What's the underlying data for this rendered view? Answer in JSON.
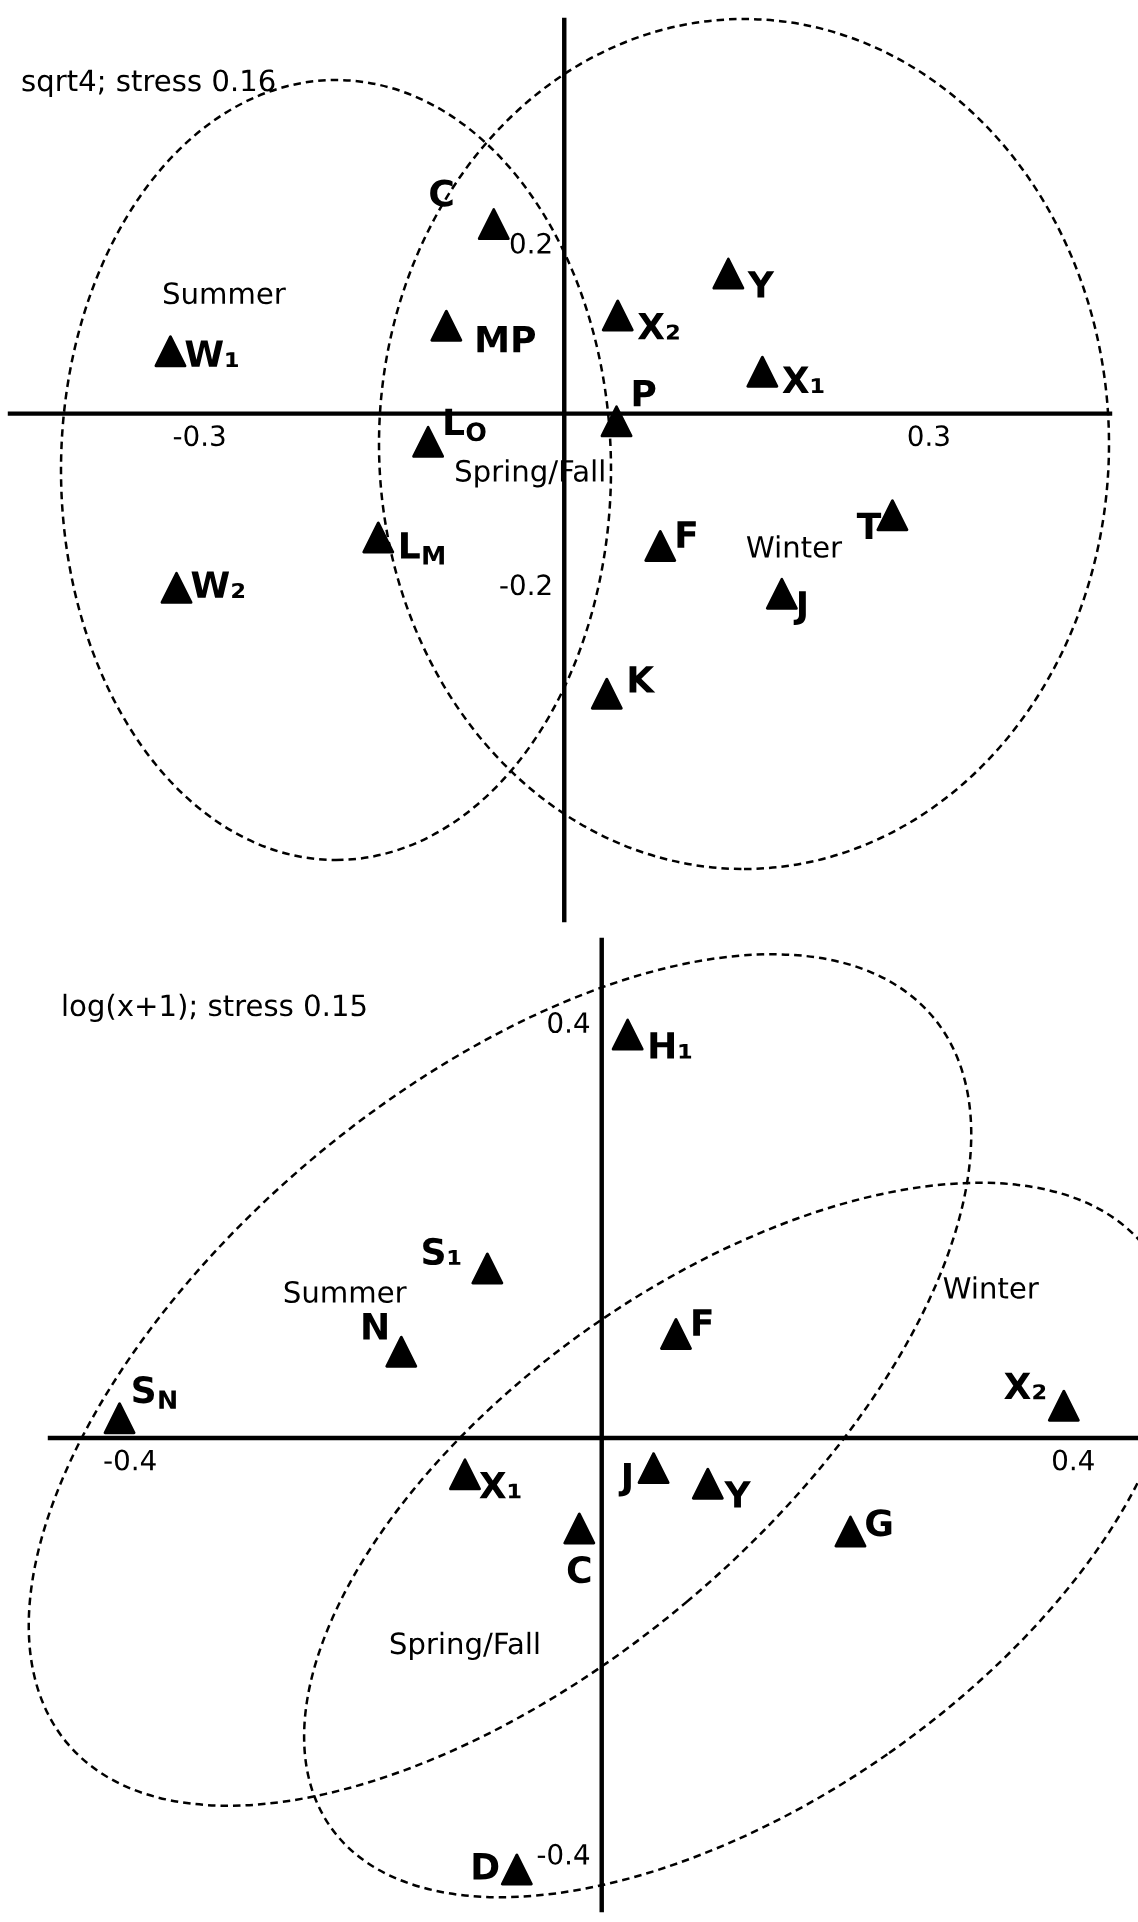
{
  "chart_data": [
    {
      "type": "scatter",
      "title": "sqrt4; stress 0.16",
      "marker": "triangle",
      "grid": false,
      "xlim": [
        -0.456,
        0.449
      ],
      "ylim": [
        -0.593,
        0.461
      ],
      "xticks": [
        -0.3,
        0.3
      ],
      "yticks": [
        -0.2,
        0.2
      ],
      "series": [
        {
          "color": "#000000",
          "x": [
            -0.058,
            -0.097,
            -0.324,
            0.044,
            0.135,
            0.163,
            0.043,
            -0.112,
            -0.153,
            -0.319,
            0.079,
            0.27,
            0.179,
            0.035
          ],
          "values": [
            0.222,
            0.103,
            0.073,
            0.115,
            0.164,
            0.049,
            -0.009,
            -0.033,
            -0.145,
            -0.204,
            -0.155,
            -0.119,
            -0.211,
            -0.328
          ]
        }
      ],
      "annotations": [
        {
          "text": "C",
          "x": -0.058,
          "y": 0.222
        },
        {
          "text": "MP",
          "x": -0.097,
          "y": 0.103
        },
        {
          "text": "W₁",
          "x": -0.324,
          "y": 0.073
        },
        {
          "text": "X₂",
          "x": 0.044,
          "y": 0.115
        },
        {
          "text": "Y",
          "x": 0.135,
          "y": 0.164
        },
        {
          "text": "X₁",
          "x": 0.163,
          "y": 0.049
        },
        {
          "text": "P",
          "x": 0.043,
          "y": -0.009
        },
        {
          "text": "L$_{O}$",
          "x": -0.112,
          "y": -0.033
        },
        {
          "text": "L$_{M}$",
          "x": -0.153,
          "y": -0.145
        },
        {
          "text": "W₂",
          "x": -0.319,
          "y": -0.204
        },
        {
          "text": "F",
          "x": 0.079,
          "y": -0.155
        },
        {
          "text": "T",
          "x": 0.27,
          "y": -0.119
        },
        {
          "text": "J",
          "x": 0.179,
          "y": -0.211
        },
        {
          "text": "K",
          "x": 0.035,
          "y": -0.328
        },
        "Summer",
        "Spring/Fall",
        "Winter"
      ]
    },
    {
      "type": "scatter",
      "title": "log(x+1); stress 0.15",
      "marker": "triangle",
      "grid": false,
      "xlim": [
        -0.468,
        0.46
      ],
      "ylim": [
        -0.454,
        0.479
      ],
      "xticks": [
        -0.4,
        0.4
      ],
      "yticks": [
        -0.4,
        0.4
      ],
      "series": [
        {
          "color": "#000000",
          "x": [
            0.022,
            -0.097,
            -0.17,
            0.063,
            -0.409,
            0.392,
            -0.116,
            0.044,
            0.09,
            -0.019,
            0.211,
            -0.072
          ],
          "values": [
            0.388,
            0.163,
            0.083,
            0.1,
            0.019,
            0.031,
            -0.035,
            -0.029,
            -0.044,
            -0.087,
            -0.09,
            -0.415
          ]
        }
      ],
      "annotations": [
        {
          "text": "H₁",
          "x": 0.022,
          "y": 0.388
        },
        {
          "text": "S₁",
          "x": -0.097,
          "y": 0.163
        },
        {
          "text": "N",
          "x": -0.17,
          "y": 0.083
        },
        {
          "text": "F",
          "x": 0.063,
          "y": 0.1
        },
        {
          "text": "S$_{N}$",
          "x": -0.409,
          "y": 0.019
        },
        {
          "text": "X₂",
          "x": 0.392,
          "y": 0.031
        },
        {
          "text": "X₁",
          "x": -0.116,
          "y": -0.035
        },
        {
          "text": "J",
          "x": 0.044,
          "y": -0.029
        },
        {
          "text": "Y",
          "x": 0.09,
          "y": -0.044
        },
        {
          "text": "C",
          "x": -0.019,
          "y": -0.087
        },
        {
          "text": "G",
          "x": 0.211,
          "y": -0.09
        },
        {
          "text": "D",
          "x": -0.072,
          "y": -0.415
        },
        "Summer",
        "Winter",
        "Spring/Fall"
      ]
    }
  ]
}
